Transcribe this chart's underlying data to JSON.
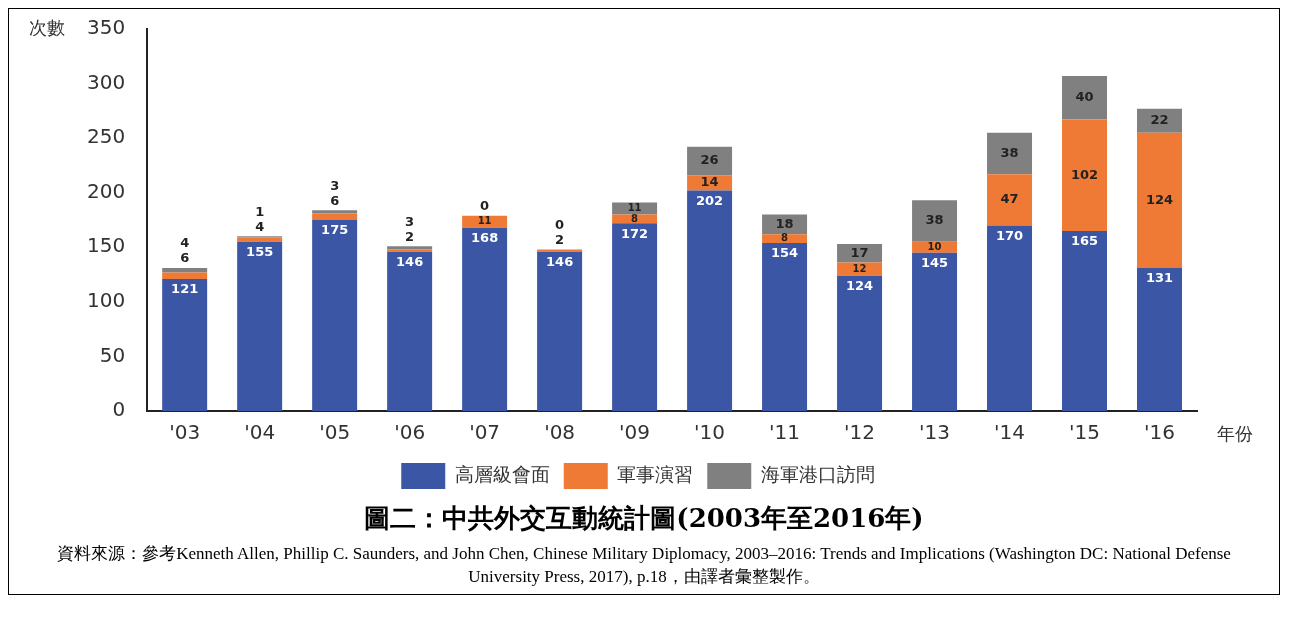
{
  "chart_data": {
    "type": "bar",
    "title": "圖二：中共外交互動統計圖(2003年至2016年)",
    "xlabel": "年份",
    "ylabel": "次數",
    "categories": [
      "'03",
      "'04",
      "'05",
      "'06",
      "'07",
      "'08",
      "'09",
      "'10",
      "'11",
      "'12",
      "'13",
      "'14",
      "'15",
      "'16"
    ],
    "series": [
      {
        "name": "高層級會面",
        "color": "#3c56a6",
        "values": [
          121,
          155,
          175,
          146,
          168,
          146,
          172,
          202,
          154,
          124,
          145,
          170,
          165,
          131
        ]
      },
      {
        "name": "軍事演習",
        "color": "#ef7a35",
        "values": [
          6,
          4,
          6,
          2,
          11,
          2,
          8,
          14,
          8,
          12,
          10,
          47,
          102,
          124
        ]
      },
      {
        "name": "海軍港口訪問",
        "color": "#808080",
        "values": [
          4,
          1,
          3,
          3,
          0,
          0,
          11,
          26,
          18,
          17,
          38,
          38,
          40,
          22
        ]
      }
    ],
    "stacked": true,
    "data_labels": true,
    "legend": "bottom",
    "grid": false,
    "ylim": [
      0,
      350
    ],
    "yticks": [
      0,
      50,
      100,
      150,
      200,
      250,
      300,
      350
    ],
    "annotations": [
      "資料來源：參考Kenneth Allen, Phillip C. Saunders, and John Chen, Chinese Military Diplomacy, 2003–2016: Trends and Implications (Washington DC: National Defense University Press, 2017), p.18，由譯者彙整製作。"
    ]
  }
}
